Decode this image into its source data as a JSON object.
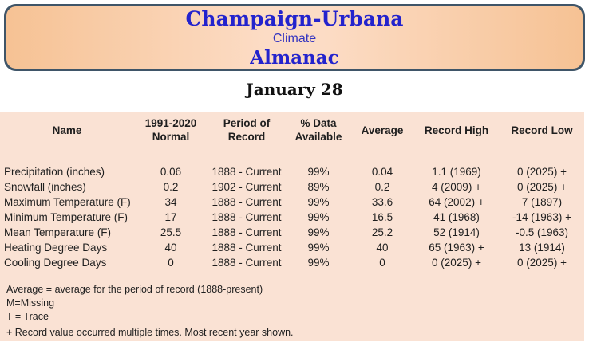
{
  "header": {
    "title": "Champaign-Urbana",
    "subtitle": "Climate",
    "title2": "Almanac"
  },
  "date_heading": "January 28",
  "table": {
    "column_keys": [
      "name",
      "normal",
      "period_of_record",
      "pct_data_available",
      "average",
      "record_high",
      "record_low"
    ],
    "columns": [
      {
        "label": "Name"
      },
      {
        "label": "1991-2020\nNormal"
      },
      {
        "label": "Period of\nRecord"
      },
      {
        "label": "% Data\nAvailable"
      },
      {
        "label": "Average"
      },
      {
        "label": "Record High"
      },
      {
        "label": "Record Low"
      }
    ],
    "rows": [
      {
        "cells": [
          "Precipitation (inches)",
          "0.06",
          "1888 - Current",
          "99%",
          "0.04",
          "1.1 (1969)",
          "0 (2025) +"
        ]
      },
      {
        "cells": [
          "Snowfall (inches)",
          "0.2",
          "1902 - Current",
          "89%",
          "0.2",
          "4 (2009) +",
          "0 (2025) +"
        ]
      },
      {
        "cells": [
          "Maximum Temperature (F)",
          "34",
          "1888 - Current",
          "99%",
          "33.6",
          "64 (2002) +",
          "7 (1897)"
        ]
      },
      {
        "cells": [
          "Minimum Temperature (F)",
          "17",
          "1888 - Current",
          "99%",
          "16.5",
          "41 (1968)",
          "-14 (1963) +"
        ]
      },
      {
        "cells": [
          "Mean Temperature (F)",
          "25.5",
          "1888 - Current",
          "99%",
          "25.2",
          "52 (1914)",
          "-0.5 (1963)"
        ]
      },
      {
        "cells": [
          "Heating Degree Days",
          "40",
          "1888 - Current",
          "99%",
          "40",
          "65 (1963) +",
          "13 (1914)"
        ]
      },
      {
        "cells": [
          "Cooling Degree Days",
          "0",
          "1888 - Current",
          "99%",
          "0",
          "0 (2025) +",
          "0 (2025) +"
        ]
      }
    ]
  },
  "footnotes": [
    "Average = average for the period of record (1888-present)",
    "M=Missing",
    "T = Trace",
    "+ Record value occurred multiple times. Most recent year shown."
  ],
  "colors": {
    "title_blue": "#2323cd",
    "panel_peach": "#fae2d4",
    "box_peach_edge": "#f6c294",
    "box_peach_center": "#fcdcc5",
    "box_border": "#3f5568"
  }
}
